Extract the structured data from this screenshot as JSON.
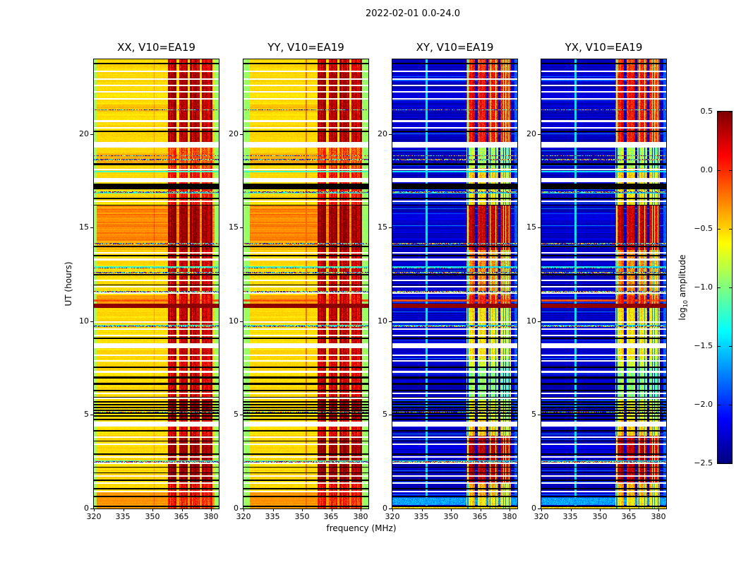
{
  "chart_data": {
    "type": "heatmap",
    "title": "2022-02-01 0.0-24.0",
    "xlabel": "frequency (MHz)",
    "ylabel": "UT (hours)",
    "x_range_mhz": [
      320,
      384
    ],
    "y_range_hours": [
      0,
      24
    ],
    "x_ticks": [
      "320",
      "335",
      "350",
      "365",
      "380"
    ],
    "y_ticks": [
      "0",
      "5",
      "10",
      "15",
      "20"
    ],
    "grid": false,
    "panels": [
      {
        "id": "XX",
        "title": "XX, V10=EA19"
      },
      {
        "id": "YY",
        "title": "YY, V10=EA19"
      },
      {
        "id": "XY",
        "title": "XY, V10=EA19"
      },
      {
        "id": "YX",
        "title": "YX, V10=EA19"
      }
    ],
    "colorbar": {
      "label_prefix": "log",
      "label_sub": "10",
      "label_suffix": " amplitude",
      "tick_labels": [
        "0.5",
        "0.0",
        "−0.5",
        "−1.0",
        "−1.5",
        "−2.0",
        "−2.5"
      ],
      "vmin": -2.5,
      "vmax": 0.5,
      "colormap": "jet",
      "position": "right"
    },
    "render": {
      "rfi_bands_mhz": [
        [
          357.8,
          362.4
        ],
        [
          363.6,
          368.2
        ],
        [
          369.2,
          374.2
        ],
        [
          375.2,
          380.6
        ]
      ],
      "band_time_segments": [
        [
          0.0,
          0.6,
          0.0,
          -0.6
        ],
        [
          0.6,
          1.4,
          0.15,
          -0.4
        ],
        [
          1.4,
          3.9,
          0.45,
          0.3
        ],
        [
          3.9,
          4.7,
          0.2,
          -0.5
        ],
        [
          4.7,
          5.8,
          0.45,
          -0.7
        ],
        [
          5.8,
          7.6,
          0.25,
          -1.0
        ],
        [
          7.6,
          8.0,
          0.2,
          -0.8
        ],
        [
          8.0,
          10.7,
          0.3,
          -0.6
        ],
        [
          10.7,
          10.95,
          0.3,
          0.0
        ],
        [
          10.95,
          11.4,
          0.2,
          0.0
        ],
        [
          11.4,
          13.8,
          0.3,
          -0.3
        ],
        [
          13.8,
          16.2,
          0.45,
          0.25
        ],
        [
          16.2,
          17.4,
          0.1,
          -0.6
        ],
        [
          17.4,
          18.2,
          0.1,
          -0.5
        ],
        [
          18.2,
          19.6,
          -0.1,
          -0.9
        ],
        [
          19.6,
          21.9,
          0.35,
          0.05
        ],
        [
          21.9,
          23.3,
          0.4,
          0.1
        ],
        [
          23.3,
          24.01,
          0.25,
          -0.1
        ]
      ],
      "white_rows": [
        [
          23.35,
          0.08
        ],
        [
          22.95,
          0.08
        ],
        [
          22.6,
          0.08
        ],
        [
          22.25,
          0.08
        ],
        [
          21.9,
          0.08
        ],
        [
          20.7,
          0.08
        ],
        [
          20.35,
          0.08
        ],
        [
          19.45,
          0.3
        ],
        [
          18.1,
          0.08
        ],
        [
          17.55,
          0.22
        ],
        [
          16.4,
          0.08
        ],
        [
          13.65,
          0.08
        ],
        [
          13.3,
          0.08
        ],
        [
          12.2,
          0.08
        ],
        [
          11.85,
          0.08
        ],
        [
          11.5,
          0.08
        ],
        [
          9.95,
          0.08
        ],
        [
          9.6,
          0.08
        ],
        [
          9.25,
          0.08
        ],
        [
          8.7,
          0.28
        ],
        [
          8.2,
          0.08
        ],
        [
          7.9,
          0.08
        ],
        [
          7.3,
          0.08
        ],
        [
          6.15,
          0.08
        ],
        [
          5.9,
          0.08
        ],
        [
          4.5,
          0.28
        ],
        [
          3.8,
          0.08
        ],
        [
          3.45,
          0.08
        ],
        [
          2.75,
          0.08
        ],
        [
          2.4,
          0.08
        ],
        [
          1.75,
          0.08
        ],
        [
          1.35,
          0.08
        ],
        [
          0.9,
          0.08
        ]
      ],
      "black_rows": [
        [
          23.78,
          0.08
        ],
        [
          20.15,
          0.08
        ],
        [
          18.4,
          0.1
        ],
        [
          17.2,
          0.28
        ],
        [
          16.55,
          0.08
        ],
        [
          16.2,
          0.06
        ],
        [
          14.0,
          0.06
        ],
        [
          13.5,
          0.06
        ],
        [
          12.5,
          0.08
        ],
        [
          11.95,
          0.06
        ],
        [
          9.1,
          0.06
        ],
        [
          7.55,
          0.1
        ],
        [
          7.0,
          0.08
        ],
        [
          6.65,
          0.12
        ],
        [
          6.3,
          0.08
        ],
        [
          5.95,
          0.06
        ],
        [
          5.7,
          0.06
        ],
        [
          5.55,
          0.08
        ],
        [
          5.4,
          0.06
        ],
        [
          5.25,
          0.08
        ],
        [
          5.1,
          0.06
        ],
        [
          4.95,
          0.06
        ],
        [
          4.75,
          0.1
        ],
        [
          4.15,
          0.08
        ],
        [
          3.6,
          0.06
        ],
        [
          2.9,
          0.06
        ],
        [
          2.2,
          0.06
        ],
        [
          1.9,
          0.06
        ],
        [
          1.5,
          0.06
        ],
        [
          1.05,
          0.06
        ],
        [
          0.65,
          0.06
        ],
        [
          0.12,
          0.06
        ]
      ],
      "dark_red_row": [
        10.82,
        0.22
      ],
      "orange_row": [
        11.1,
        0.12
      ],
      "cyan_rows": [
        [
          18.0,
          0.06
        ],
        [
          16.85,
          0.06
        ],
        [
          12.9,
          0.06
        ],
        [
          9.8,
          0.06
        ],
        [
          2.55,
          0.06
        ]
      ],
      "speckle_rows": [
        [
          21.3,
          0.07
        ],
        [
          18.85,
          0.07
        ],
        [
          18.65,
          0.07
        ],
        [
          16.9,
          0.07
        ],
        [
          14.15,
          0.07
        ],
        [
          12.85,
          0.07
        ],
        [
          12.6,
          0.07
        ],
        [
          11.6,
          0.07
        ],
        [
          9.75,
          0.07
        ],
        [
          5.15,
          0.07
        ],
        [
          2.5,
          0.07
        ]
      ],
      "warm_bg_ranges": [
        [
          14.3,
          16.2,
          0.25
        ],
        [
          13.8,
          14.3,
          0.12
        ],
        [
          10.95,
          11.4,
          0.18
        ],
        [
          18.4,
          19.0,
          0.12
        ],
        [
          21.2,
          21.6,
          0.1
        ],
        [
          0.0,
          0.9,
          0.2
        ]
      ],
      "xy_cyan_band_t": [
        0.18,
        0.58
      ],
      "xy_cyan_line_mhz": 337.5,
      "yy_orange_line_mhz": 352.3,
      "xx_faint_line_mhz": 350.9,
      "xx_base": -0.52,
      "xy_base": -2.42,
      "xx_edges_mhz": [
        321.6,
        382.0
      ],
      "yy_edges_mhz": [
        323.3,
        380.7
      ],
      "edge_value": -0.92,
      "xy_right_edge_mhz": 382.4,
      "xy_right_edge_value": -1.85
    }
  }
}
